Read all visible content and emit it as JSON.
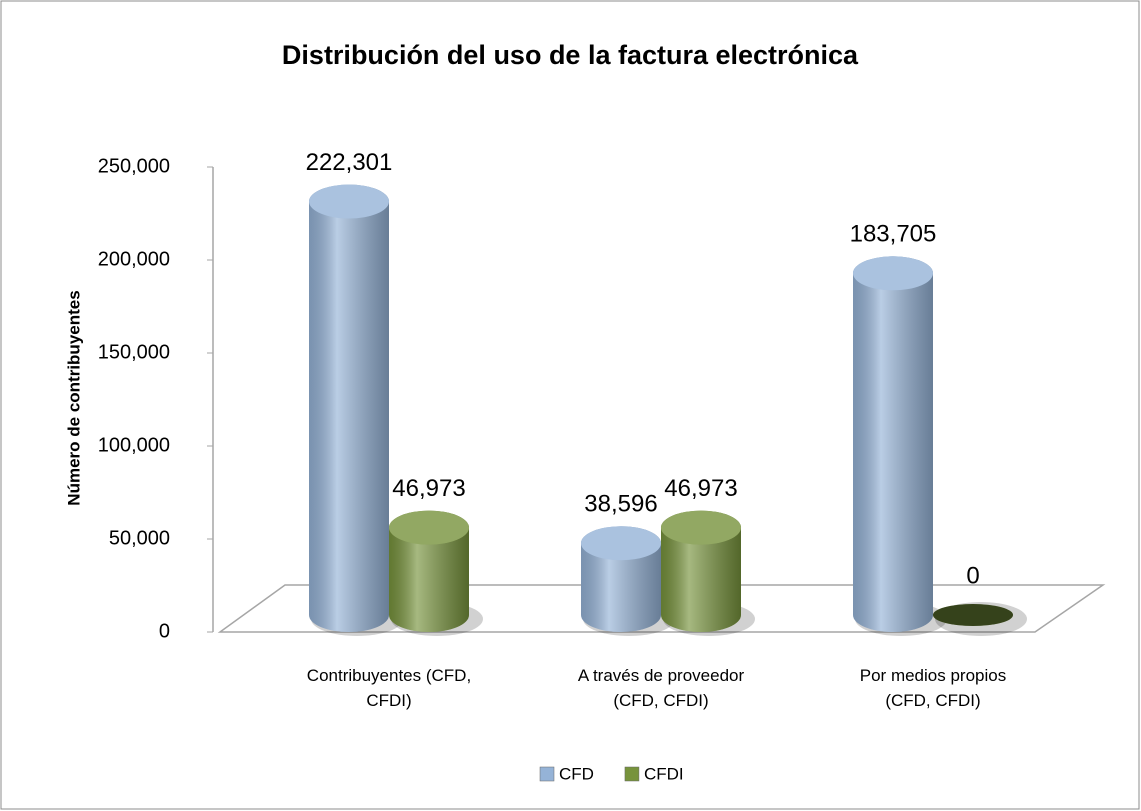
{
  "chart_data": {
    "type": "bar3d",
    "title": "Distribución del uso de la factura electrónica",
    "y_label": "Número de contribuyentes",
    "categories": [
      "Contribuyentes (CFD, CFDI)",
      "A través de proveedor (CFD, CFDI)",
      "Por medios propios (CFD, CFDI)"
    ],
    "series": [
      {
        "name": "CFD",
        "color": "#95b3d7",
        "values": [
          222301,
          38596,
          183705
        ],
        "value_labels": [
          "222,301",
          "38,596",
          "183,705"
        ]
      },
      {
        "name": "CFDI",
        "color": "#77933c",
        "values": [
          46973,
          46973,
          0
        ],
        "value_labels": [
          "46,973",
          "46,973",
          "0"
        ]
      }
    ],
    "ylim": [
      0,
      250000
    ],
    "yticks": [
      0,
      {
        "value": 50000,
        "label": "50,000"
      },
      {
        "value": 100000,
        "label": "100,000"
      },
      {
        "value": 150000,
        "label": "150,000"
      },
      {
        "value": 200000,
        "label": "200,000"
      },
      {
        "value": 250000,
        "label": "250,000"
      }
    ],
    "grid": false,
    "legend": "bottom"
  }
}
